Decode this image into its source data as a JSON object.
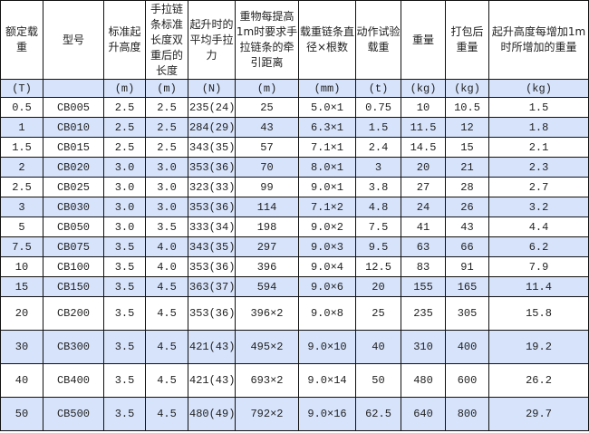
{
  "headers": [
    "额定载重",
    "型号",
    "标准起升高度",
    "手拉链条标准长度双重后的长度",
    "起升时的平均手拉力",
    "重物每提高1m时要求手拉链条的牵引距离",
    "载重链条直径×根数",
    "动作试验载重",
    "重量",
    "打包后重量",
    "起升高度每增加1m时所增加的重量"
  ],
  "units": [
    "(T)",
    "",
    "(m)",
    "(m)",
    "(N)",
    "(m)",
    "(mm)",
    "(t)",
    "(kg)",
    "(kg)",
    "(kg)"
  ],
  "rows": [
    [
      "0.5",
      "CB005",
      "2.5",
      "2.5",
      "235(24)",
      "25",
      "5.0×1",
      "0.75",
      "10",
      "10.5",
      "1.5"
    ],
    [
      "1",
      "CB010",
      "2.5",
      "2.5",
      "284(29)",
      "43",
      "6.3×1",
      "1.5",
      "11.5",
      "12",
      "1.8"
    ],
    [
      "1.5",
      "CB015",
      "2.5",
      "2.5",
      "343(35)",
      "57",
      "7.1×1",
      "2.4",
      "14.5",
      "15",
      "2.1"
    ],
    [
      "2",
      "CB020",
      "3.0",
      "3.0",
      "353(36)",
      "70",
      "8.0×1",
      "3",
      "20",
      "21",
      "2.3"
    ],
    [
      "2.5",
      "CB025",
      "3.0",
      "3.0",
      "323(33)",
      "99",
      "9.0×1",
      "3.8",
      "27",
      "28",
      "2.7"
    ],
    [
      "3",
      "CB030",
      "3.0",
      "3.0",
      "353(36)",
      "114",
      "7.1×2",
      "4.8",
      "24",
      "26",
      "3.2"
    ],
    [
      "5",
      "CB050",
      "3.0",
      "3.5",
      "333(34)",
      "198",
      "9.0×2",
      "7.5",
      "41",
      "43",
      "4.4"
    ],
    [
      "7.5",
      "CB075",
      "3.5",
      "4.0",
      "343(35)",
      "297",
      "9.0×3",
      "9.5",
      "63",
      "66",
      "6.2"
    ],
    [
      "10",
      "CB100",
      "3.5",
      "4.0",
      "353(36)",
      "396",
      "9.0×4",
      "12.5",
      "83",
      "91",
      "7.9"
    ],
    [
      "15",
      "CB150",
      "3.5",
      "4.5",
      "363(37)",
      "594",
      "9.0×6",
      "20",
      "155",
      "165",
      "11.4"
    ],
    [
      "20",
      "CB200",
      "3.5",
      "4.5",
      "353(36)×2",
      "396×2",
      "9.0×8",
      "25",
      "235",
      "305",
      "15.8"
    ],
    [
      "30",
      "CB300",
      "3.5",
      "4.5",
      "421(43)×2",
      "495×2",
      "9.0×10",
      "40",
      "310",
      "400",
      "19.2"
    ],
    [
      "40",
      "CB400",
      "3.5",
      "4.5",
      "421(43)×2",
      "693×2",
      "9.0×14",
      "50",
      "480",
      "600",
      "26.2"
    ],
    [
      "50",
      "CB500",
      "3.5",
      "4.5",
      "480(49)×2",
      "792×2",
      "9.0×16",
      "62.5",
      "640",
      "800",
      "29.7"
    ]
  ],
  "colors": {
    "stripe": "#d6e3fb",
    "border": "#111111"
  }
}
